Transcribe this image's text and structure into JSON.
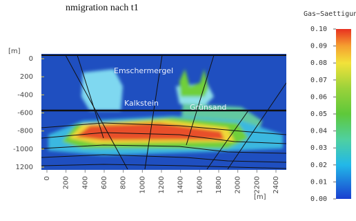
{
  "chart_data": {
    "type": "contour",
    "title": "nmigration nach t1",
    "xlabel": "[m]",
    "ylabel": "[m]",
    "annotations": [
      "Emschermergel",
      "Kalkstein",
      "Grünsand"
    ],
    "xlim": [
      0,
      2400
    ],
    "xticks": [
      0,
      200,
      400,
      600,
      800,
      1000,
      1200,
      1400,
      1600,
      1800,
      2000,
      2200,
      2400
    ],
    "ylim": [
      0,
      -1200
    ],
    "yticks": [
      0,
      {
        "value": -200,
        "label": "200"
      },
      -400,
      -600,
      -800,
      -1000,
      {
        "value": -1200,
        "label": "1200"
      }
    ],
    "colorbar": {
      "title": "Gas−Saettigung [−]",
      "lim": [
        0,
        0.1
      ],
      "ticks": [
        {
          "value": 0,
          "label": "0.00"
        },
        {
          "value": 0.01,
          "label": "0.01"
        },
        {
          "value": 0.02,
          "label": "0.02"
        },
        {
          "value": 0.03,
          "label": "0.03"
        },
        {
          "value": 0.04,
          "label": "0.04"
        },
        {
          "value": 0.05,
          "label": "0.05"
        },
        {
          "value": 0.06,
          "label": "0.06"
        },
        {
          "value": 0.07,
          "label": "0.07"
        },
        {
          "value": 0.08,
          "label": "0.08"
        },
        {
          "value": 0.09,
          "label": "0.09"
        },
        {
          "value": 0.1,
          "label": "0.10"
        }
      ]
    }
  }
}
